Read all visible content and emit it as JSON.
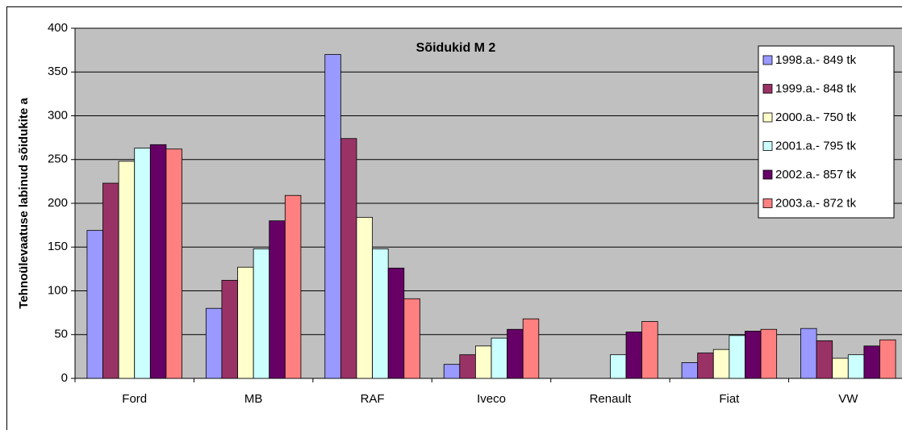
{
  "chart_data": {
    "type": "bar",
    "title": "Sõidukid M 2",
    "y_label": "Tehnoülevaatuse labinud sõidukite a",
    "categories": [
      "Ford",
      "MB",
      "RAF",
      "Iveco",
      "Renault",
      "Fiat",
      "VW"
    ],
    "series": [
      {
        "name": "1998.a.- 849 tk",
        "color": "#9999ff",
        "values": [
          169,
          80,
          370,
          16,
          null,
          18,
          57
        ]
      },
      {
        "name": "1999.a.- 848 tk",
        "color": "#993366",
        "values": [
          223,
          112,
          274,
          27,
          null,
          29,
          43
        ]
      },
      {
        "name": "2000.a.- 750 tk",
        "color": "#ffffcc",
        "values": [
          248,
          127,
          184,
          37,
          null,
          33,
          23
        ]
      },
      {
        "name": "2001.a.- 795 tk",
        "color": "#ccffff",
        "values": [
          263,
          148,
          148,
          46,
          27,
          49,
          27
        ]
      },
      {
        "name": "2002.a.- 857 tk",
        "color": "#660066",
        "values": [
          267,
          180,
          126,
          56,
          53,
          54,
          37
        ]
      },
      {
        "name": "2003.a.- 872 tk",
        "color": "#ff8080",
        "values": [
          262,
          209,
          91,
          68,
          65,
          56,
          44
        ]
      }
    ],
    "ylim": [
      0,
      400
    ],
    "yticks": [
      0,
      50,
      100,
      150,
      200,
      250,
      300,
      350,
      400
    ],
    "grid": true,
    "legend": "top-right",
    "background": "#c0c0c0"
  }
}
